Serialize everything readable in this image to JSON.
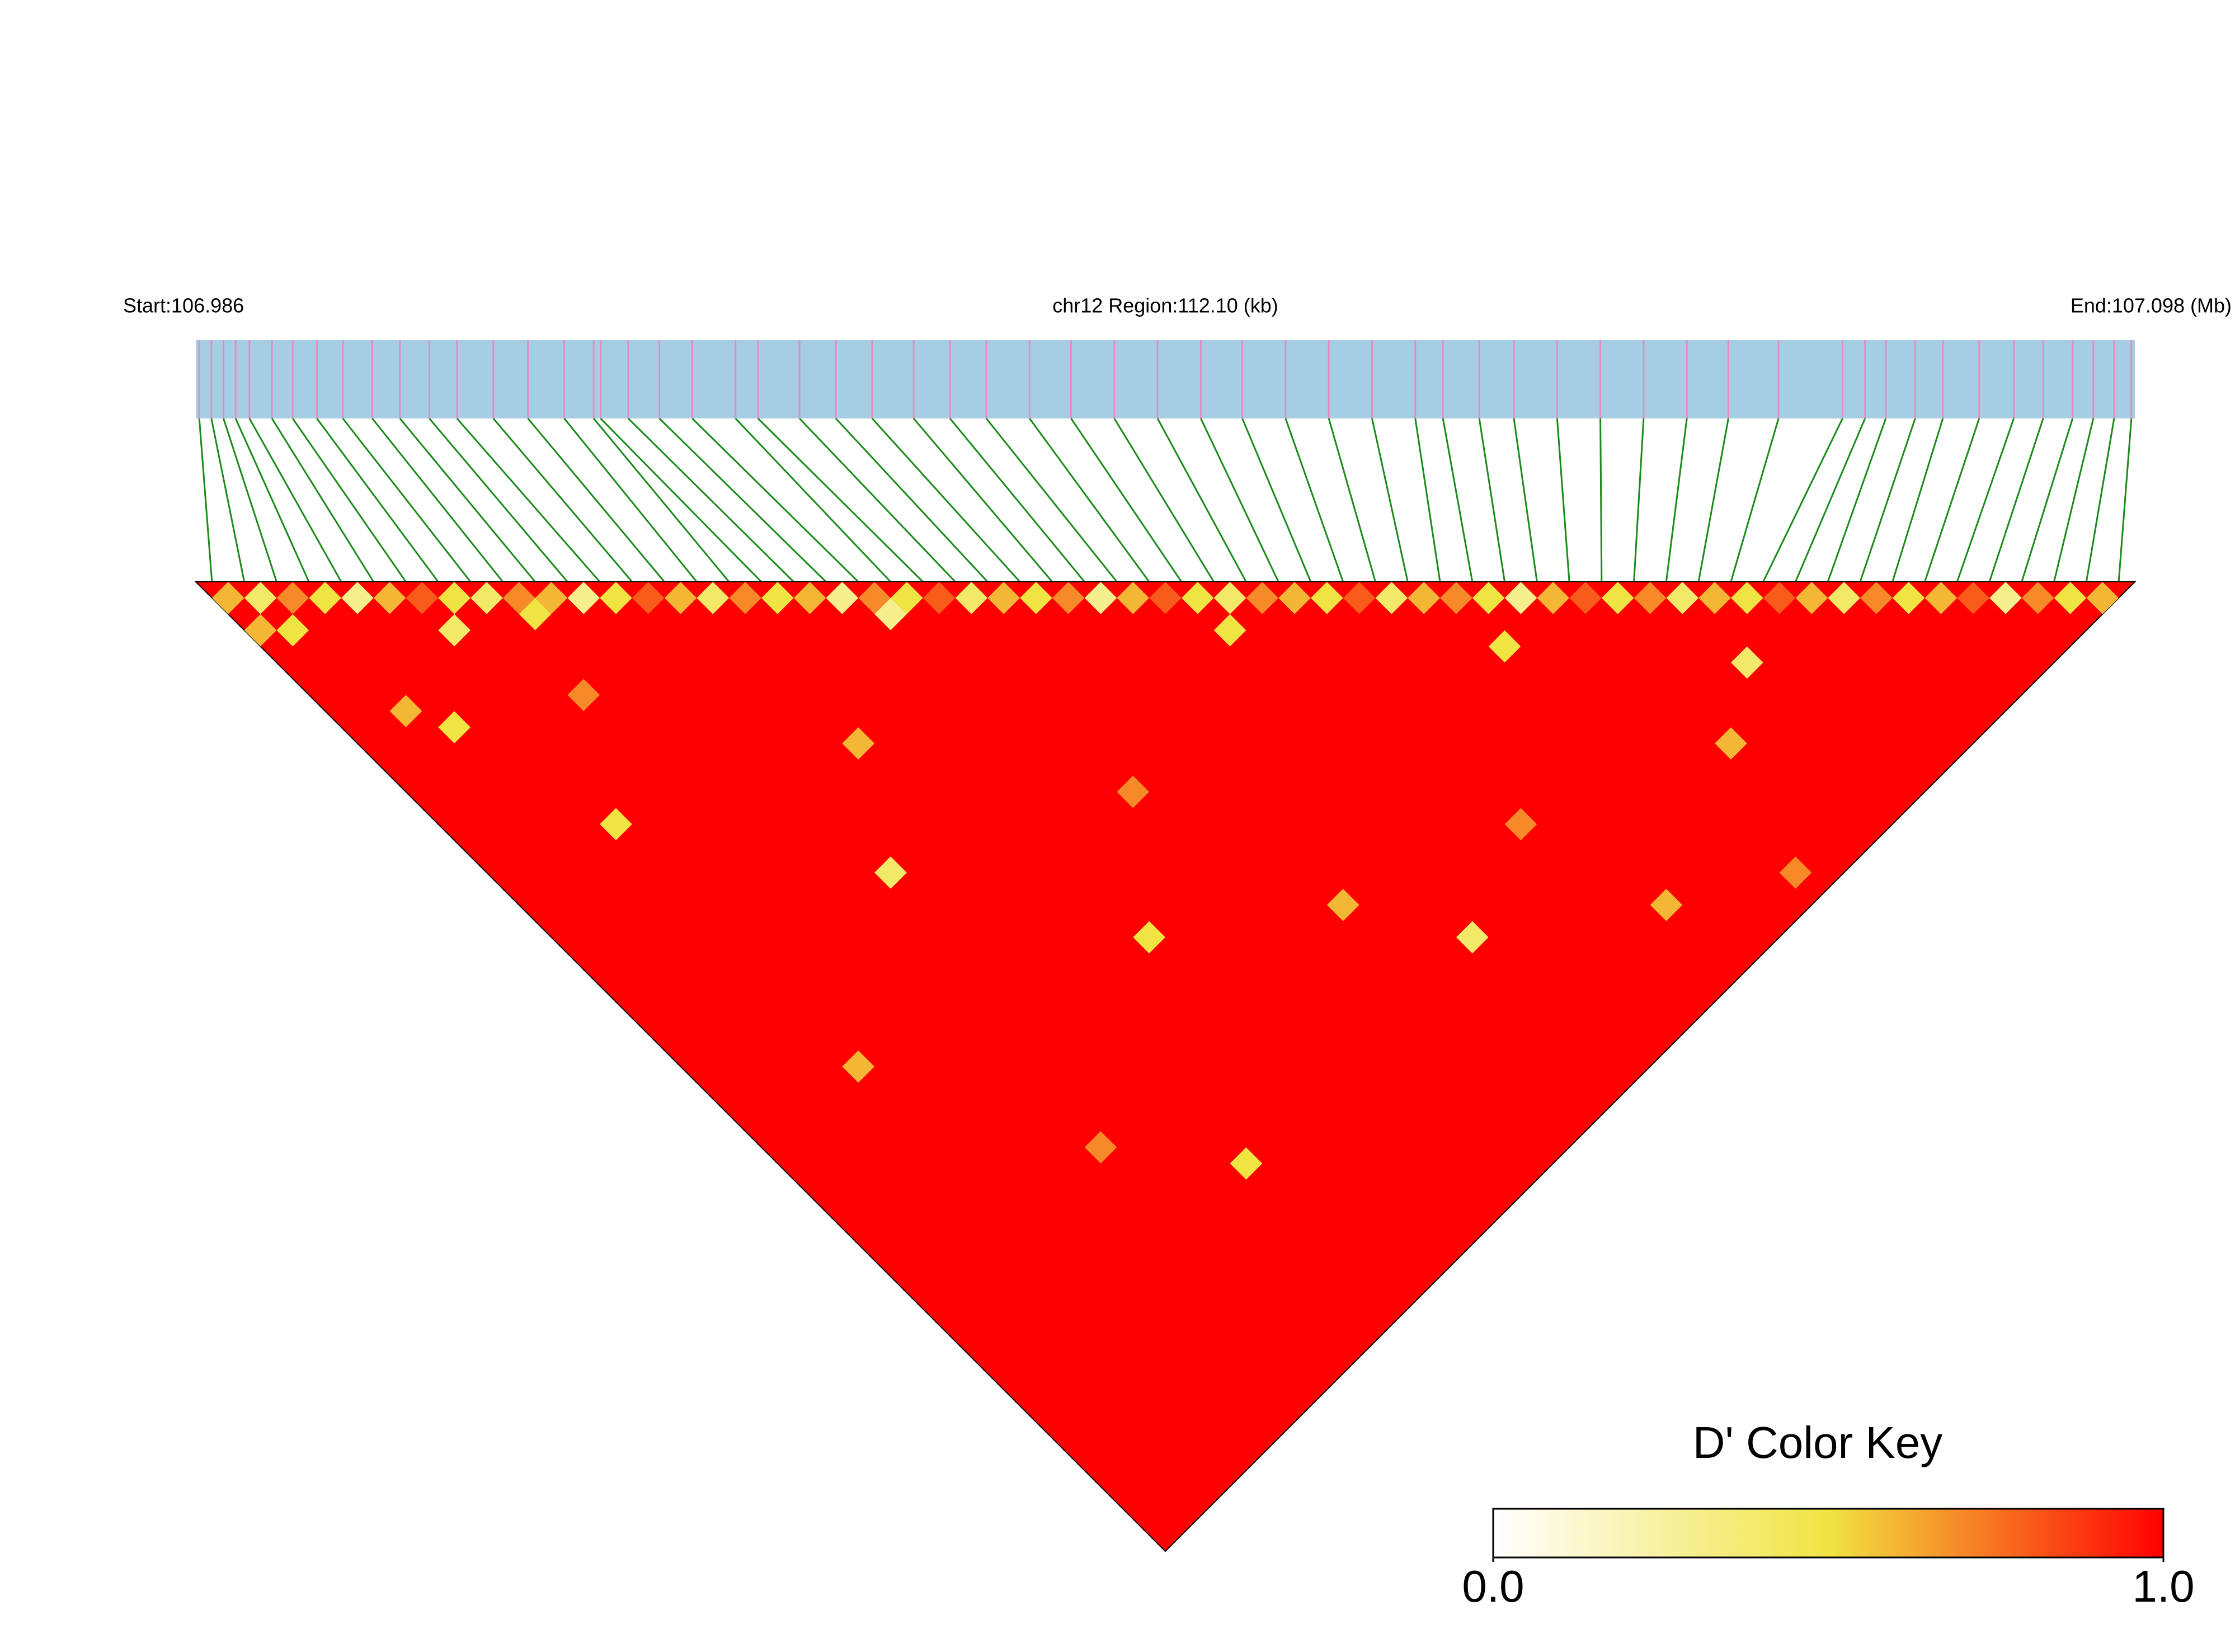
{
  "chart_data": {
    "type": "ld-heatmap",
    "start_label": "Start:106.986",
    "region_label": "chr12 Region:112.10 (kb)",
    "end_label": "End:107.098 (Mb)",
    "xlim": [
      0,
      112.1
    ],
    "snp_positions": [
      0.2,
      0.9,
      1.6,
      2.3,
      3.1,
      4.4,
      5.6,
      7.0,
      8.5,
      10.2,
      11.8,
      13.5,
      15.1,
      17.2,
      19.2,
      21.3,
      23.0,
      23.4,
      25.0,
      26.8,
      28.7,
      31.2,
      32.5,
      34.9,
      37.0,
      39.1,
      41.5,
      43.6,
      45.7,
      48.2,
      50.6,
      53.1,
      55.6,
      58.1,
      60.5,
      63.0,
      65.5,
      68.0,
      70.5,
      72.1,
      74.2,
      76.2,
      78.7,
      81.2,
      83.7,
      86.2,
      88.6,
      91.5,
      95.2,
      96.5,
      97.7,
      99.4,
      101.0,
      103.1,
      105.1,
      106.8,
      108.5,
      109.7,
      110.9,
      111.9
    ],
    "bar_color": "#a6cee3",
    "snp_line_color": "#e78ac3",
    "connector_color": "#1a8a1a",
    "cells": [
      [
        0,
        1,
        0.6
      ],
      [
        1,
        2,
        0.4
      ],
      [
        2,
        3,
        0.7
      ],
      [
        3,
        4,
        0.5
      ],
      [
        4,
        5,
        0.3
      ],
      [
        5,
        6,
        0.6
      ],
      [
        6,
        7,
        0.8
      ],
      [
        7,
        8,
        0.5
      ],
      [
        8,
        9,
        0.4
      ],
      [
        9,
        10,
        0.7
      ],
      [
        10,
        11,
        0.6
      ],
      [
        11,
        12,
        0.3
      ],
      [
        12,
        13,
        0.5
      ],
      [
        13,
        14,
        0.8
      ],
      [
        14,
        15,
        0.6
      ],
      [
        15,
        16,
        0.4
      ],
      [
        16,
        17,
        0.7
      ],
      [
        17,
        18,
        0.5
      ],
      [
        18,
        19,
        0.6
      ],
      [
        19,
        20,
        0.3
      ],
      [
        20,
        21,
        0.7
      ],
      [
        21,
        22,
        0.5
      ],
      [
        22,
        23,
        0.8
      ],
      [
        23,
        24,
        0.4
      ],
      [
        24,
        25,
        0.6
      ],
      [
        25,
        26,
        0.5
      ],
      [
        26,
        27,
        0.7
      ],
      [
        27,
        28,
        0.3
      ],
      [
        28,
        29,
        0.6
      ],
      [
        29,
        30,
        0.8
      ],
      [
        30,
        31,
        0.5
      ],
      [
        31,
        32,
        0.4
      ],
      [
        32,
        33,
        0.7
      ],
      [
        33,
        34,
        0.6
      ],
      [
        34,
        35,
        0.5
      ],
      [
        35,
        36,
        0.8
      ],
      [
        36,
        37,
        0.4
      ],
      [
        37,
        38,
        0.6
      ],
      [
        38,
        39,
        0.7
      ],
      [
        39,
        40,
        0.5
      ],
      [
        40,
        41,
        0.3
      ],
      [
        41,
        42,
        0.6
      ],
      [
        42,
        43,
        0.8
      ],
      [
        43,
        44,
        0.5
      ],
      [
        44,
        45,
        0.7
      ],
      [
        45,
        46,
        0.4
      ],
      [
        46,
        47,
        0.6
      ],
      [
        47,
        48,
        0.5
      ],
      [
        48,
        49,
        0.8
      ],
      [
        49,
        50,
        0.6
      ],
      [
        50,
        51,
        0.4
      ],
      [
        51,
        52,
        0.7
      ],
      [
        52,
        53,
        0.5
      ],
      [
        53,
        54,
        0.6
      ],
      [
        54,
        55,
        0.8
      ],
      [
        55,
        56,
        0.3
      ],
      [
        56,
        57,
        0.7
      ],
      [
        57,
        58,
        0.5
      ],
      [
        58,
        59,
        0.6
      ],
      [
        2,
        10,
        0.6
      ],
      [
        5,
        20,
        0.5
      ],
      [
        8,
        15,
        0.7
      ],
      [
        12,
        30,
        0.4
      ],
      [
        15,
        25,
        0.6
      ],
      [
        18,
        40,
        0.5
      ],
      [
        20,
        22,
        0.3
      ],
      [
        22,
        35,
        0.7
      ],
      [
        25,
        45,
        0.6
      ],
      [
        28,
        50,
        0.4
      ],
      [
        30,
        33,
        0.5
      ],
      [
        33,
        48,
        0.7
      ],
      [
        35,
        55,
        0.6
      ],
      [
        38,
        42,
        0.5
      ],
      [
        40,
        58,
        0.7
      ],
      [
        42,
        52,
        0.6
      ],
      [
        45,
        50,
        0.4
      ],
      [
        10,
        45,
        0.7
      ],
      [
        5,
        35,
        0.6
      ],
      [
        14,
        50,
        0.5
      ],
      [
        3,
        12,
        0.5
      ],
      [
        6,
        9,
        0.4
      ],
      [
        1,
        4,
        0.5
      ],
      [
        0,
        3,
        0.6
      ],
      [
        9,
        11,
        0.5
      ]
    ],
    "key_title": "D' Color Key",
    "key_range": [
      0.0,
      1.0
    ],
    "key_ticks": [
      {
        "value": 0,
        "label": "0.0"
      },
      {
        "value": 1,
        "label": "1.0"
      }
    ],
    "colors": [
      "#ffffff",
      "#f0e442",
      "#ff0000"
    ]
  }
}
